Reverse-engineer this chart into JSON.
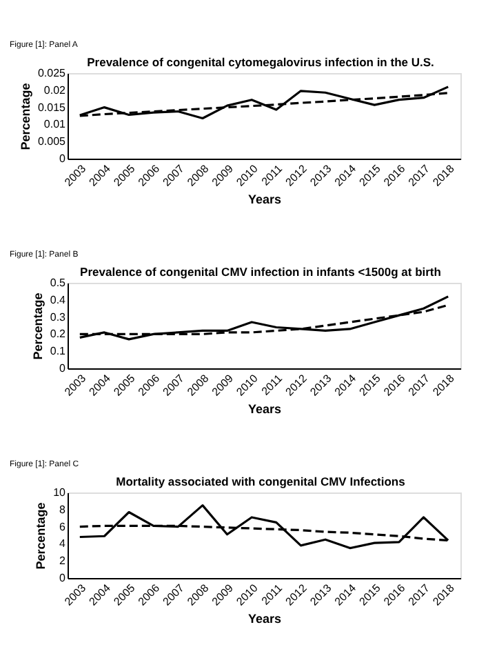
{
  "chart_data": [
    {
      "type": "line",
      "title": "Prevalence of congenital cytomegalovirus infection in the U.S.",
      "xlabel": "Years",
      "ylabel": "Percentage",
      "annotations": [
        "Figure [1]: Panel A"
      ],
      "categories": [
        "2003",
        "2004",
        "2005",
        "2006",
        "2007",
        "2008",
        "2009",
        "2010",
        "2011",
        "2012",
        "2013",
        "2014",
        "2015",
        "2016",
        "2017",
        "2018"
      ],
      "ylim": [
        0,
        0.025
      ],
      "yticks": [
        0,
        0.005,
        0.01,
        0.015,
        0.02,
        0.025
      ],
      "grid": false,
      "marker": "none",
      "series": [
        {
          "color": "#000000",
          "line_style": "solid",
          "values": [
            0.0127,
            0.015,
            0.0128,
            0.0135,
            0.0138,
            0.0118,
            0.0155,
            0.0172,
            0.0143,
            0.0198,
            0.0193,
            0.0175,
            0.0157,
            0.0172,
            0.0178,
            0.021
          ]
        },
        {
          "type": "line",
          "color": "#000000",
          "line_style": "dashed",
          "values": [
            0.0125,
            0.013,
            0.0134,
            0.0138,
            0.0142,
            0.0146,
            0.015,
            0.0154,
            0.0158,
            0.0163,
            0.0167,
            0.0172,
            0.0176,
            0.0181,
            0.0186,
            0.0192
          ]
        }
      ]
    },
    {
      "type": "line",
      "title": "Prevalence of congenital CMV infection in infants <1500g at birth",
      "xlabel": "Years",
      "ylabel": "Percentage",
      "annotations": [
        "Figure [1]: Panel B"
      ],
      "categories": [
        "2003",
        "2004",
        "2005",
        "2006",
        "2007",
        "2008",
        "2009",
        "2010",
        "2011",
        "2012",
        "2013",
        "2014",
        "2015",
        "2016",
        "2017",
        "2018"
      ],
      "ylim": [
        0,
        0.5
      ],
      "yticks": [
        0,
        0.1,
        0.2,
        0.3,
        0.4,
        0.5
      ],
      "grid": false,
      "marker": "none",
      "series": [
        {
          "color": "#000000",
          "line_style": "solid",
          "values": [
            0.18,
            0.21,
            0.17,
            0.2,
            0.21,
            0.22,
            0.22,
            0.27,
            0.24,
            0.23,
            0.22,
            0.23,
            0.27,
            0.31,
            0.35,
            0.42
          ]
        },
        {
          "type": "line",
          "color": "#000000",
          "line_style": "dashed",
          "values": [
            0.2,
            0.2,
            0.2,
            0.2,
            0.2,
            0.2,
            0.21,
            0.21,
            0.22,
            0.23,
            0.25,
            0.27,
            0.29,
            0.31,
            0.33,
            0.37
          ]
        }
      ]
    },
    {
      "type": "line",
      "title": "Mortality associated with congenital CMV Infections",
      "xlabel": "Years",
      "ylabel": "Percentage",
      "annotations": [
        "Figure [1]: Panel C"
      ],
      "categories": [
        "2003",
        "2004",
        "2005",
        "2006",
        "2007",
        "2008",
        "2009",
        "2010",
        "2011",
        "2012",
        "2013",
        "2014",
        "2015",
        "2016",
        "2017",
        "2018"
      ],
      "ylim": [
        0,
        10
      ],
      "yticks": [
        0,
        2,
        4,
        6,
        8,
        10
      ],
      "grid": false,
      "marker": "none",
      "series": [
        {
          "color": "#000000",
          "line_style": "solid",
          "values": [
            4.8,
            4.9,
            7.7,
            6.1,
            6.0,
            8.5,
            5.1,
            7.1,
            6.5,
            3.8,
            4.5,
            3.5,
            4.1,
            4.2,
            7.1,
            4.4
          ]
        },
        {
          "type": "line",
          "color": "#000000",
          "line_style": "dashed",
          "values": [
            6.0,
            6.1,
            6.1,
            6.1,
            6.1,
            6.0,
            5.9,
            5.8,
            5.7,
            5.6,
            5.4,
            5.3,
            5.1,
            4.9,
            4.6,
            4.4
          ]
        }
      ]
    }
  ]
}
